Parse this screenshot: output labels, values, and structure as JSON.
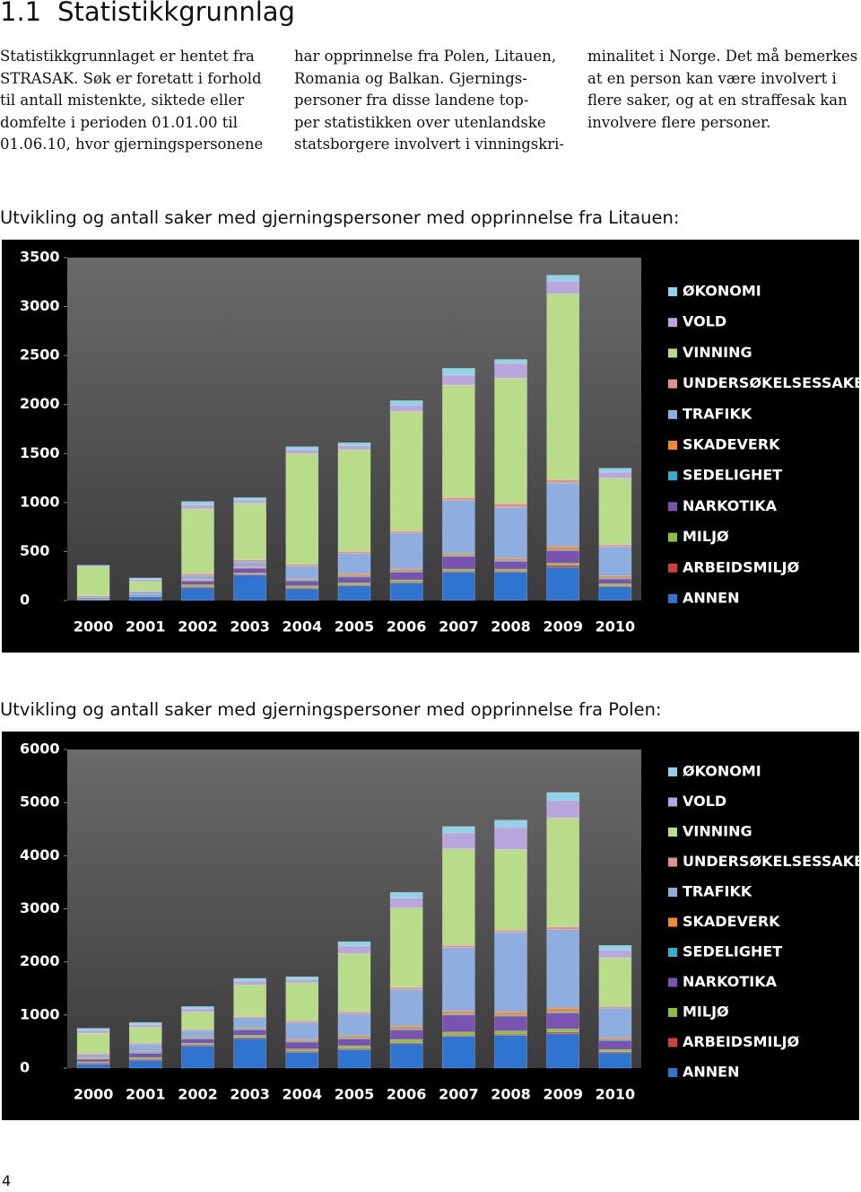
{
  "header": {
    "number": "1.1",
    "title": "Statistikkgrunnlag"
  },
  "columns": [
    {
      "lines": [
        "Statistikkgrunnlaget er hentet fra",
        "STRASAK. Søk er foretatt i forhold",
        "til antall mistenkte, siktede eller",
        "domfelte i perioden 01.01.00 til",
        "01.06.10, hvor gjerningspersonene"
      ]
    },
    {
      "lines": [
        "har opprinnelse fra Polen, Litauen,",
        "Romania og Balkan. Gjernings-",
        "personer fra disse landene top-",
        "per statistikken over utenlandske",
        "statsborgere involvert i vinningskri-"
      ]
    },
    {
      "lines": [
        "minalitet i Norge. Det må bemerkes",
        "at en person kan være involvert i",
        "flere saker, og at en straffesak kan",
        "involvere flere personer."
      ]
    }
  ],
  "chart_data": [
    {
      "type": "stacked_bar",
      "title": "Utvikling og antall saker med gjerningspersoner med opprinnelse fra Litauen:",
      "categories": [
        "2000",
        "2001",
        "2002",
        "2003",
        "2004",
        "2005",
        "2006",
        "2007",
        "2008",
        "2009",
        "2010"
      ],
      "ylim": [
        0,
        3500
      ],
      "yticks": [
        0,
        500,
        1000,
        1500,
        2000,
        2500,
        3000,
        3500
      ],
      "series": [
        {
          "name": "ANNEN",
          "color": "#2f74d0",
          "values": [
            10,
            40,
            130,
            260,
            120,
            150,
            180,
            290,
            290,
            340,
            140
          ]
        },
        {
          "name": "ARBEIDSMILJØ",
          "color": "#d0403c",
          "values": [
            0,
            0,
            10,
            10,
            10,
            10,
            10,
            10,
            10,
            20,
            10
          ]
        },
        {
          "name": "MILJØ",
          "color": "#8fbf3f",
          "values": [
            10,
            5,
            20,
            10,
            20,
            20,
            20,
            20,
            20,
            20,
            20
          ]
        },
        {
          "name": "NARKOTIKA",
          "color": "#7a52b0",
          "values": [
            10,
            10,
            40,
            50,
            50,
            60,
            80,
            130,
            80,
            130,
            50
          ]
        },
        {
          "name": "SEDELIGHET",
          "color": "#2fb0cc",
          "values": [
            0,
            0,
            5,
            5,
            10,
            10,
            10,
            10,
            10,
            10,
            10
          ]
        },
        {
          "name": "SKADEVERK",
          "color": "#f08a2c",
          "values": [
            5,
            5,
            10,
            10,
            10,
            20,
            20,
            20,
            20,
            30,
            20
          ]
        },
        {
          "name": "TRAFIKK",
          "color": "#8eaee0",
          "values": [
            15,
            30,
            40,
            50,
            130,
            210,
            370,
            540,
            520,
            650,
            300
          ]
        },
        {
          "name": "UNDERSØKELSESSAKER",
          "color": "#df9490",
          "values": [
            5,
            5,
            20,
            20,
            20,
            20,
            20,
            30,
            40,
            30,
            20
          ]
        },
        {
          "name": "VINNING",
          "color": "#b9dc8a",
          "values": [
            290,
            100,
            660,
            580,
            1130,
            1040,
            1220,
            1150,
            1280,
            1900,
            680
          ]
        },
        {
          "name": "VOLD",
          "color": "#b9a6dc",
          "values": [
            10,
            20,
            40,
            30,
            40,
            40,
            60,
            100,
            150,
            130,
            60
          ]
        },
        {
          "name": "ØKONOMI",
          "color": "#8fd4e6",
          "values": [
            5,
            15,
            35,
            25,
            30,
            30,
            50,
            70,
            40,
            60,
            40
          ]
        }
      ]
    },
    {
      "type": "stacked_bar",
      "title": "Utvikling og antall saker med gjerningspersoner med opprinnelse fra Polen:",
      "categories": [
        "2000",
        "2001",
        "2002",
        "2003",
        "2004",
        "2005",
        "2006",
        "2007",
        "2008",
        "2009",
        "2010"
      ],
      "ylim": [
        0,
        6000
      ],
      "yticks": [
        0,
        1000,
        2000,
        3000,
        4000,
        5000,
        6000
      ],
      "series": [
        {
          "name": "ANNEN",
          "color": "#2f74d0",
          "values": [
            80,
            150,
            420,
            560,
            300,
            350,
            460,
            600,
            620,
            650,
            290
          ]
        },
        {
          "name": "ARBEIDSMILJØ",
          "color": "#d0403c",
          "values": [
            20,
            20,
            20,
            20,
            20,
            20,
            20,
            20,
            20,
            30,
            20
          ]
        },
        {
          "name": "MILJØ",
          "color": "#8fbf3f",
          "values": [
            20,
            30,
            30,
            40,
            40,
            50,
            60,
            60,
            60,
            60,
            40
          ]
        },
        {
          "name": "NARKOTIKA",
          "color": "#7a52b0",
          "values": [
            50,
            80,
            80,
            100,
            130,
            130,
            180,
            320,
            280,
            300,
            170
          ]
        },
        {
          "name": "SEDELIGHET",
          "color": "#2fb0cc",
          "values": [
            10,
            20,
            20,
            20,
            20,
            20,
            20,
            20,
            20,
            20,
            20
          ]
        },
        {
          "name": "SKADEVERK",
          "color": "#f08a2c",
          "values": [
            20,
            20,
            20,
            20,
            30,
            40,
            50,
            50,
            60,
            70,
            30
          ]
        },
        {
          "name": "TRAFIKK",
          "color": "#8eaee0",
          "values": [
            60,
            130,
            120,
            190,
            320,
            420,
            690,
            1200,
            1500,
            1480,
            560
          ]
        },
        {
          "name": "UNDERSØKELSESSAKER",
          "color": "#df9490",
          "values": [
            20,
            20,
            20,
            20,
            30,
            30,
            40,
            40,
            40,
            50,
            30
          ]
        },
        {
          "name": "VINNING",
          "color": "#b9dc8a",
          "values": [
            380,
            300,
            330,
            600,
            720,
            1100,
            1500,
            1820,
            1520,
            2050,
            920
          ]
        },
        {
          "name": "VOLD",
          "color": "#b9a6dc",
          "values": [
            50,
            50,
            60,
            70,
            60,
            140,
            180,
            300,
            420,
            330,
            140
          ]
        },
        {
          "name": "ØKONOMI",
          "color": "#8fd4e6",
          "values": [
            40,
            40,
            40,
            50,
            50,
            80,
            110,
            120,
            130,
            150,
            90
          ]
        }
      ]
    }
  ],
  "page_number": "4"
}
